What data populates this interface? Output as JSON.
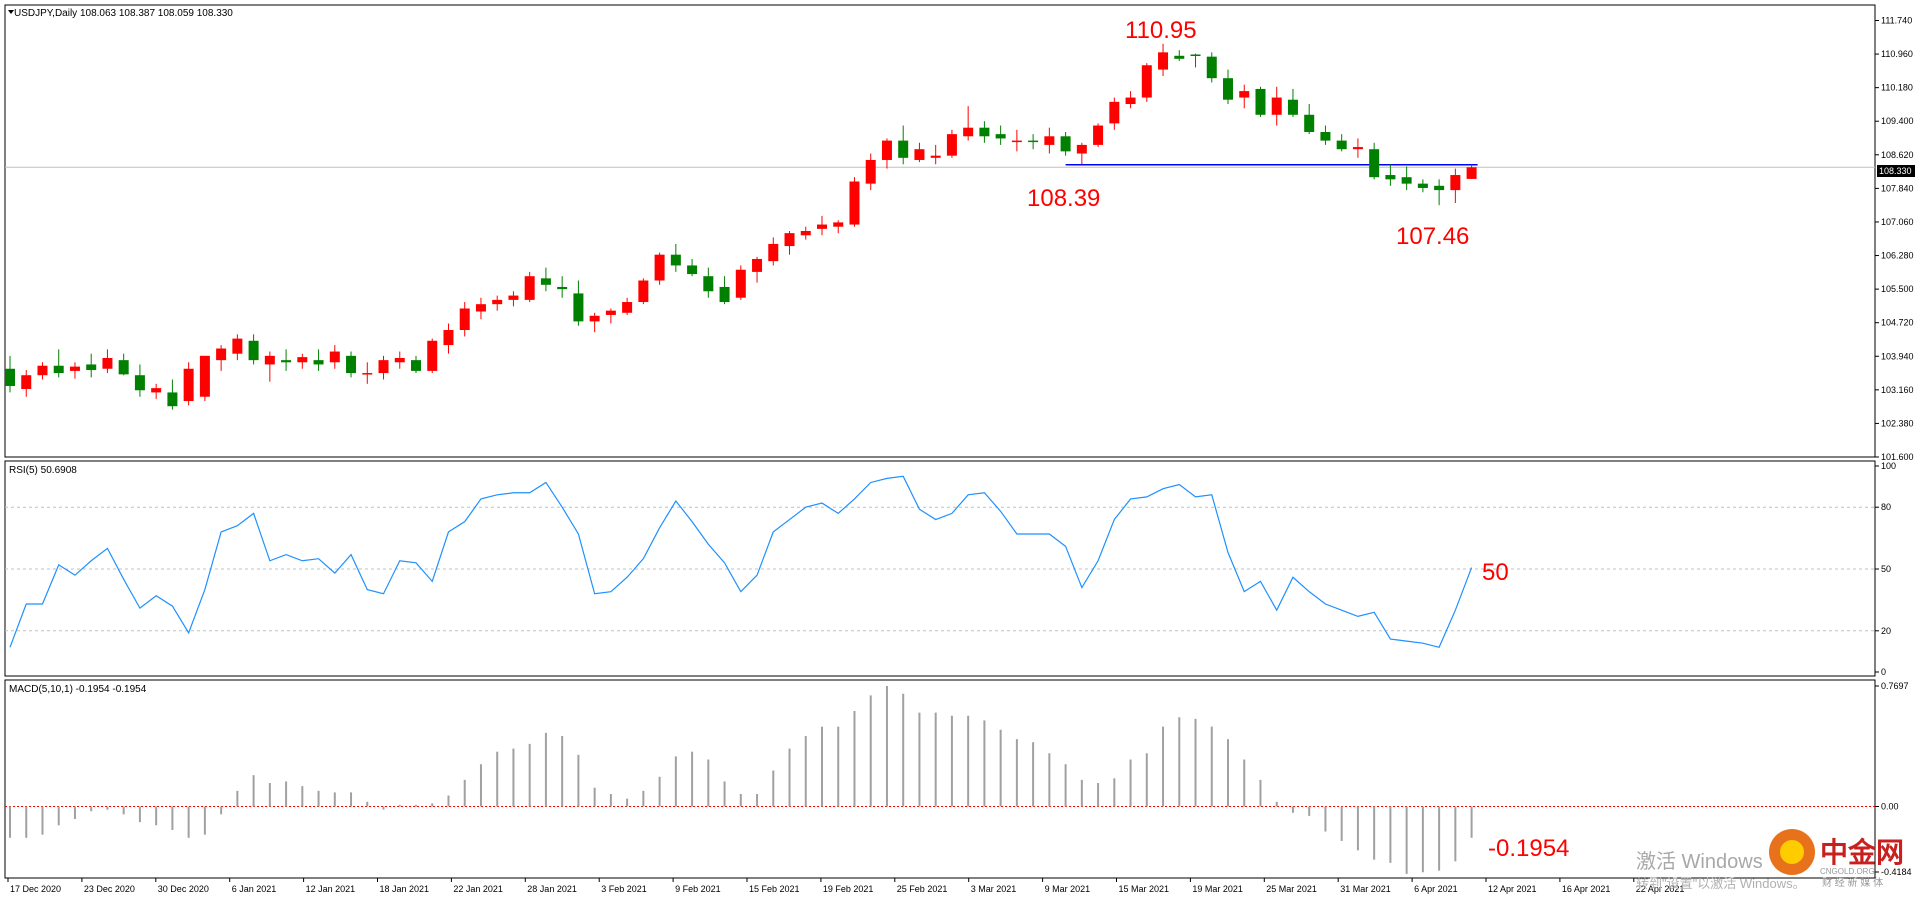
{
  "colors": {
    "bull": "#ff0000",
    "bear": "#008000",
    "rsi_line": "#1e90ff",
    "support_line": "#0000ff",
    "annotation": "#ff0000",
    "grid": "#c0c0c0",
    "frame": "#000000",
    "zero_line": "#ff0000"
  },
  "price_panel": {
    "title": "USDJPY,Daily  108.063 108.387 108.059 108.330",
    "current_price_label": "108.330",
    "axis_ticks": [
      "111.740",
      "110.960",
      "110.180",
      "109.400",
      "108.620",
      "107.840",
      "107.060",
      "106.280",
      "105.500",
      "104.720",
      "103.940",
      "103.160",
      "102.380",
      "101.600"
    ]
  },
  "rsi_panel": {
    "title": "RSI(5) 50.6908",
    "axis_ticks": [
      "100",
      "80",
      "50",
      "20",
      "0"
    ]
  },
  "macd_panel": {
    "title": "MACD(5,10,1) -0.1954 -0.1954",
    "axis_ticks": [
      "0.7697",
      "0.00",
      "-0.4184"
    ]
  },
  "x_axis": {
    "labels": [
      "17 Dec 2020",
      "23 Dec 2020",
      "30 Dec 2020",
      "6 Jan 2021",
      "12 Jan 2021",
      "18 Jan 2021",
      "22 Jan 2021",
      "28 Jan 2021",
      "3 Feb 2021",
      "9 Feb 2021",
      "15 Feb 2021",
      "19 Feb 2021",
      "25 Feb 2021",
      "3 Mar 2021",
      "9 Mar 2021",
      "15 Mar 2021",
      "19 Mar 2021",
      "25 Mar 2021",
      "31 Mar 2021",
      "6 Apr 2021",
      "12 Apr 2021",
      "16 Apr 2021",
      "22 Apr 2021"
    ]
  },
  "annotations": {
    "peak": "110.95",
    "support": "108.39",
    "low": "107.46",
    "rsi_value": "50",
    "macd_value": "-0.1954"
  },
  "watermark": {
    "line1": "激活 Windows",
    "line2": "转到\"设置\"以激活 Windows。",
    "brand": "中金网",
    "brand_sub": "CNGOLD.ORG",
    "brand_sub2": "财 经 新 媒 体"
  },
  "chart_data": [
    {
      "type": "candlestick",
      "title": "USDJPY,Daily",
      "ylim": [
        101.6,
        112.1
      ],
      "support_level": 108.39,
      "candles": [
        [
          103.65,
          103.95,
          103.1,
          103.25
        ],
        [
          103.18,
          103.62,
          103.0,
          103.5
        ],
        [
          103.5,
          103.8,
          103.4,
          103.72
        ],
        [
          103.72,
          104.1,
          103.45,
          103.55
        ],
        [
          103.6,
          103.8,
          103.42,
          103.7
        ],
        [
          103.75,
          104.0,
          103.45,
          103.62
        ],
        [
          103.65,
          104.1,
          103.55,
          103.9
        ],
        [
          103.85,
          104.0,
          103.5,
          103.52
        ],
        [
          103.5,
          103.75,
          103.0,
          103.15
        ],
        [
          103.1,
          103.3,
          102.95,
          103.2
        ],
        [
          103.1,
          103.4,
          102.7,
          102.78
        ],
        [
          102.9,
          103.8,
          102.8,
          103.65
        ],
        [
          103.0,
          103.9,
          102.9,
          103.95
        ],
        [
          103.85,
          104.2,
          103.6,
          104.12
        ],
        [
          104.0,
          104.45,
          103.85,
          104.35
        ],
        [
          104.3,
          104.45,
          103.75,
          103.85
        ],
        [
          103.75,
          104.05,
          103.35,
          103.95
        ],
        [
          103.85,
          104.1,
          103.6,
          103.8
        ],
        [
          103.8,
          104.0,
          103.65,
          103.92
        ],
        [
          103.85,
          104.1,
          103.6,
          103.75
        ],
        [
          103.8,
          104.2,
          103.65,
          104.05
        ],
        [
          103.95,
          104.05,
          103.45,
          103.55
        ],
        [
          103.55,
          103.8,
          103.3,
          103.55
        ],
        [
          103.55,
          103.95,
          103.4,
          103.85
        ],
        [
          103.8,
          104.05,
          103.65,
          103.9
        ],
        [
          103.85,
          103.95,
          103.55,
          103.6
        ],
        [
          103.6,
          104.35,
          103.55,
          104.3
        ],
        [
          104.2,
          104.7,
          104.0,
          104.55
        ],
        [
          104.55,
          105.2,
          104.4,
          105.05
        ],
        [
          104.98,
          105.3,
          104.8,
          105.15
        ],
        [
          105.15,
          105.35,
          105.0,
          105.25
        ],
        [
          105.25,
          105.45,
          105.1,
          105.35
        ],
        [
          105.25,
          105.9,
          105.2,
          105.8
        ],
        [
          105.75,
          106.0,
          105.45,
          105.6
        ],
        [
          105.55,
          105.8,
          105.3,
          105.5
        ],
        [
          105.4,
          105.7,
          104.65,
          104.75
        ],
        [
          104.75,
          104.95,
          104.5,
          104.88
        ],
        [
          104.9,
          105.05,
          104.7,
          105.0
        ],
        [
          104.95,
          105.3,
          104.9,
          105.2
        ],
        [
          105.2,
          105.75,
          105.15,
          105.7
        ],
        [
          105.7,
          106.35,
          105.6,
          106.3
        ],
        [
          106.3,
          106.55,
          105.9,
          106.05
        ],
        [
          106.05,
          106.2,
          105.8,
          105.85
        ],
        [
          105.8,
          106.0,
          105.3,
          105.45
        ],
        [
          105.55,
          105.8,
          105.15,
          105.2
        ],
        [
          105.3,
          106.05,
          105.25,
          105.95
        ],
        [
          105.9,
          106.25,
          105.65,
          106.2
        ],
        [
          106.15,
          106.7,
          106.05,
          106.55
        ],
        [
          106.5,
          106.85,
          106.3,
          106.8
        ],
        [
          106.75,
          106.95,
          106.65,
          106.85
        ],
        [
          106.9,
          107.2,
          106.75,
          107.0
        ],
        [
          106.95,
          107.1,
          106.8,
          107.05
        ],
        [
          107.0,
          108.1,
          106.95,
          108.0
        ],
        [
          107.95,
          108.65,
          107.8,
          108.5
        ],
        [
          108.5,
          109.0,
          108.3,
          108.95
        ],
        [
          108.95,
          109.3,
          108.4,
          108.55
        ],
        [
          108.5,
          108.9,
          108.45,
          108.75
        ],
        [
          108.55,
          108.85,
          108.4,
          108.6
        ],
        [
          108.6,
          109.2,
          108.55,
          109.1
        ],
        [
          109.05,
          109.75,
          108.95,
          109.25
        ],
        [
          109.25,
          109.4,
          108.9,
          109.05
        ],
        [
          109.1,
          109.3,
          108.85,
          109.0
        ],
        [
          108.95,
          109.2,
          108.7,
          108.95
        ],
        [
          108.95,
          109.1,
          108.75,
          108.92
        ],
        [
          108.85,
          109.25,
          108.65,
          109.05
        ],
        [
          109.05,
          109.15,
          108.6,
          108.7
        ],
        [
          108.65,
          108.9,
          108.4,
          108.85
        ],
        [
          108.85,
          109.35,
          108.8,
          109.3
        ],
        [
          109.35,
          109.95,
          109.2,
          109.85
        ],
        [
          109.8,
          110.1,
          109.7,
          109.95
        ],
        [
          109.95,
          110.75,
          109.85,
          110.7
        ],
        [
          110.6,
          111.2,
          110.45,
          111.0
        ],
        [
          110.92,
          111.05,
          110.8,
          110.85
        ],
        [
          110.95,
          110.97,
          110.65,
          110.92
        ],
        [
          110.9,
          111.0,
          110.3,
          110.4
        ],
        [
          110.4,
          110.6,
          109.8,
          109.9
        ],
        [
          109.95,
          110.25,
          109.7,
          110.1
        ],
        [
          110.15,
          110.2,
          109.5,
          109.55
        ],
        [
          109.55,
          110.2,
          109.3,
          109.95
        ],
        [
          109.9,
          110.15,
          109.5,
          109.55
        ],
        [
          109.55,
          109.8,
          109.1,
          109.15
        ],
        [
          109.15,
          109.3,
          108.85,
          108.95
        ],
        [
          108.95,
          109.1,
          108.7,
          108.75
        ],
        [
          108.75,
          109.0,
          108.55,
          108.8
        ],
        [
          108.75,
          108.9,
          108.05,
          108.1
        ],
        [
          108.15,
          108.4,
          107.9,
          108.05
        ],
        [
          108.1,
          108.35,
          107.8,
          107.95
        ],
        [
          107.95,
          108.05,
          107.75,
          107.85
        ],
        [
          107.9,
          108.05,
          107.45,
          107.8
        ],
        [
          107.8,
          108.3,
          107.5,
          108.15
        ],
        [
          108.06,
          108.39,
          108.06,
          108.33
        ]
      ]
    },
    {
      "type": "line",
      "title": "RSI(5) 50.6908",
      "ylim": [
        0,
        100
      ],
      "levels": [
        80,
        50,
        20
      ],
      "values": [
        12,
        33,
        33,
        52,
        47,
        54,
        60,
        45,
        31,
        37,
        32,
        19,
        40,
        68,
        71,
        77,
        54,
        57,
        54,
        55,
        48,
        57,
        40,
        38,
        54,
        53,
        44,
        68,
        73,
        84,
        86,
        87,
        87,
        92,
        80,
        67,
        38,
        39,
        46,
        55,
        70,
        83,
        73,
        62,
        53,
        39,
        47,
        68,
        74,
        80,
        82,
        77,
        84,
        92,
        94,
        95,
        79,
        74,
        77,
        86,
        87,
        78,
        67,
        67,
        67,
        61,
        41,
        54,
        74,
        84,
        85,
        89,
        91,
        85,
        86,
        58,
        39,
        44,
        30,
        46,
        39,
        33,
        30,
        27,
        29,
        16,
        15,
        14,
        12,
        30,
        50.7
      ]
    },
    {
      "type": "bar",
      "title": "MACD(5,10,1) -0.1954 -0.1954",
      "ylim": [
        -0.4184,
        0.7697
      ],
      "values": [
        -0.2,
        -0.2,
        -0.18,
        -0.12,
        -0.08,
        -0.03,
        -0.02,
        -0.05,
        -0.1,
        -0.12,
        -0.15,
        -0.2,
        -0.18,
        -0.05,
        0.1,
        0.2,
        0.15,
        0.16,
        0.13,
        0.1,
        0.09,
        0.09,
        0.03,
        -0.02,
        0.01,
        0.01,
        0.02,
        0.07,
        0.17,
        0.27,
        0.35,
        0.37,
        0.4,
        0.47,
        0.45,
        0.33,
        0.12,
        0.08,
        0.05,
        0.1,
        0.19,
        0.32,
        0.35,
        0.3,
        0.16,
        0.08,
        0.08,
        0.23,
        0.37,
        0.45,
        0.51,
        0.51,
        0.61,
        0.71,
        0.77,
        0.72,
        0.6,
        0.6,
        0.58,
        0.58,
        0.55,
        0.49,
        0.43,
        0.41,
        0.34,
        0.27,
        0.17,
        0.15,
        0.18,
        0.3,
        0.34,
        0.51,
        0.57,
        0.56,
        0.51,
        0.43,
        0.3,
        0.17,
        0.03,
        -0.04,
        -0.06,
        -0.16,
        -0.22,
        -0.28,
        -0.34,
        -0.36,
        -0.43,
        -0.42,
        -0.41,
        -0.35,
        -0.2
      ]
    }
  ]
}
